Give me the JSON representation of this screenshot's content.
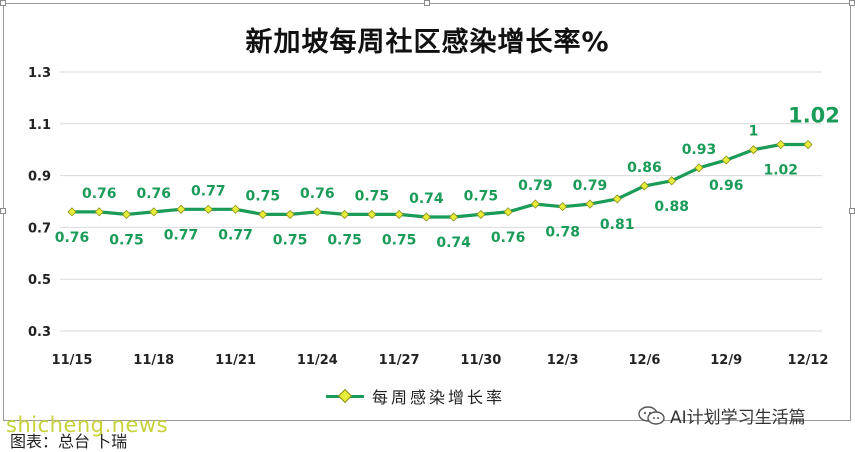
{
  "caption": {
    "source": "图表：总台 卜瑞",
    "watermark": "shicheng.news",
    "account": "AI计划学习生活篇"
  },
  "colors": {
    "line": "#1a9b58",
    "marker": "#e8ed3a",
    "label": "#1a9b58",
    "title": "#111111"
  },
  "chart_data": {
    "type": "line",
    "title": "新加坡每周社区感染增长率%",
    "xlabel": "",
    "ylabel": "",
    "ylim": [
      0.3,
      1.3
    ],
    "yticks": [
      "1.3",
      "1.1",
      "0.9",
      "0.7",
      "0.5",
      "0.3"
    ],
    "ytick_values": [
      1.3,
      1.1,
      0.9,
      0.7,
      0.5,
      0.3
    ],
    "x": [
      "11/15",
      "11/16",
      "11/17",
      "11/18",
      "11/19",
      "11/20",
      "11/21",
      "11/22",
      "11/23",
      "11/24",
      "11/25",
      "11/26",
      "11/27",
      "11/28",
      "11/29",
      "11/30",
      "12/1",
      "12/2",
      "12/3",
      "12/4",
      "12/5",
      "12/6",
      "12/7",
      "12/8",
      "12/9",
      "12/10",
      "12/11",
      "12/12"
    ],
    "xtick_labels": [
      "11/15",
      "11/18",
      "11/21",
      "11/24",
      "11/27",
      "11/30",
      "12/3",
      "12/6",
      "12/9",
      "12/12"
    ],
    "xtick_indices": [
      0,
      3,
      6,
      9,
      12,
      15,
      18,
      21,
      24,
      27
    ],
    "series": [
      {
        "name": "每周感染增长率",
        "values": [
          0.76,
          0.76,
          0.75,
          0.76,
          0.77,
          0.77,
          0.77,
          0.75,
          0.75,
          0.76,
          0.75,
          0.75,
          0.75,
          0.74,
          0.74,
          0.75,
          0.76,
          0.79,
          0.78,
          0.79,
          0.81,
          0.86,
          0.88,
          0.93,
          0.96,
          1,
          1.02,
          1.02
        ],
        "labels": [
          "0.76",
          "0.76",
          "0.75",
          "0.76",
          "0.77",
          "0.77",
          "0.77",
          "0.75",
          "0.75",
          "0.76",
          "0.75",
          "0.75",
          "0.75",
          "0.74",
          "0.74",
          "0.75",
          "0.76",
          "0.79",
          "0.78",
          "0.79",
          "0.81",
          "0.86",
          "0.88",
          "0.93",
          "0.96",
          "1",
          "1.02",
          "1.02"
        ],
        "label_sides": [
          "below",
          "above",
          "below",
          "above",
          "below",
          "above",
          "below",
          "above",
          "below",
          "above",
          "below",
          "above",
          "below",
          "above",
          "below",
          "above",
          "below",
          "above",
          "below",
          "above",
          "below",
          "above",
          "below",
          "above",
          "below",
          "above",
          "below",
          "above"
        ]
      }
    ],
    "grid": "horizontal",
    "legend": "bottom"
  }
}
